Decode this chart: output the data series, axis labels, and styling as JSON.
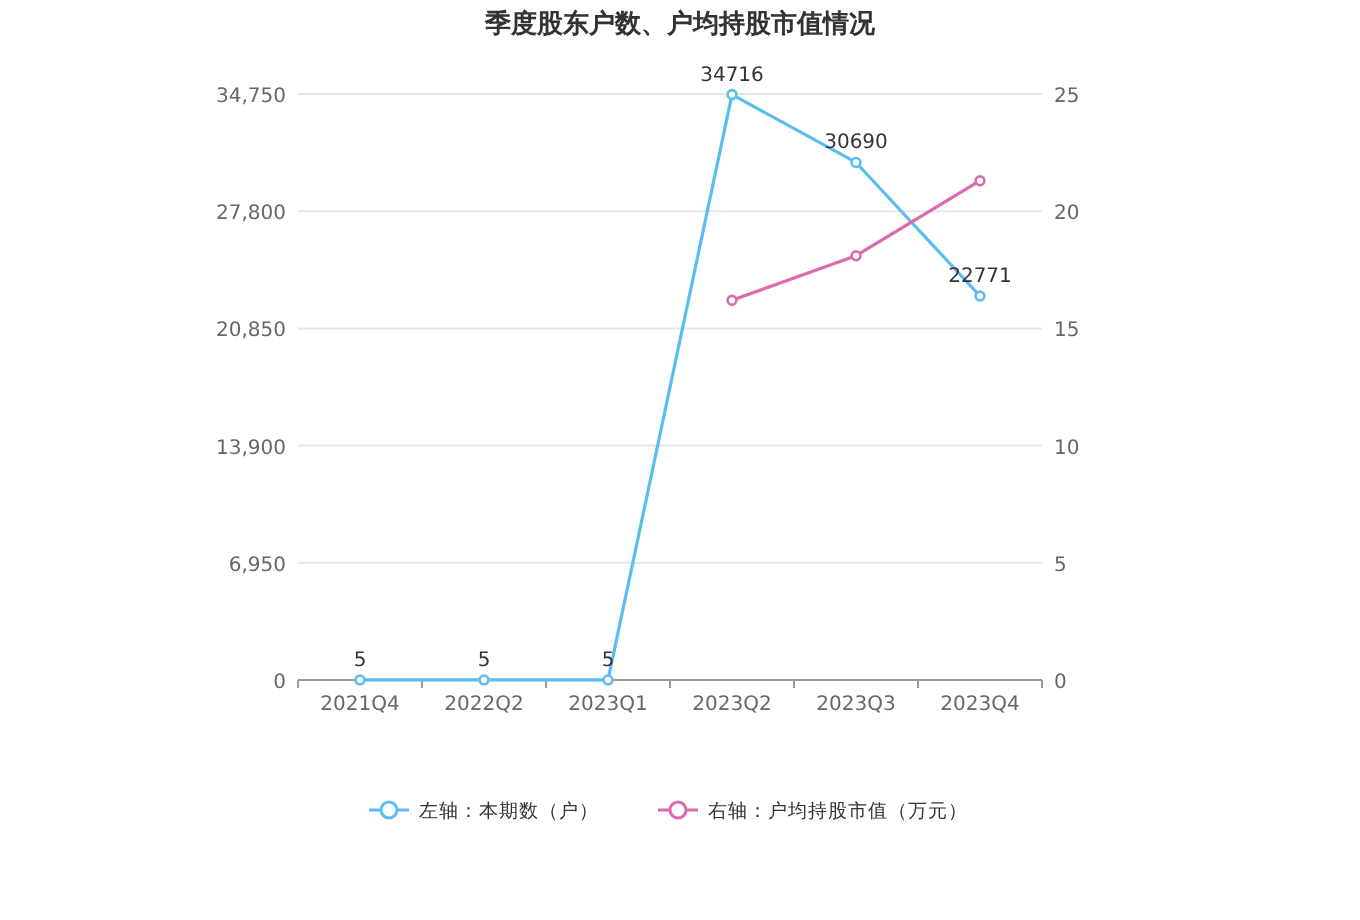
{
  "chart_data": {
    "type": "line",
    "title": "季度股东户数、户均持股市值情况",
    "categories": [
      "2021Q4",
      "2022Q2",
      "2023Q1",
      "2023Q2",
      "2023Q3",
      "2023Q4"
    ],
    "series": [
      {
        "name": "左轴：本期数（户）",
        "color": "#5bbcf0",
        "values": [
          5,
          5,
          5,
          34716,
          30690,
          22771
        ],
        "value_labels": [
          "5",
          "5",
          "5",
          "34716",
          "30690",
          "22771"
        ]
      },
      {
        "name": "右轴：户均持股市值（万元）",
        "color": "#dd6aae",
        "axis": "y2",
        "values": [
          null,
          null,
          null,
          16.2,
          18.1,
          21.3
        ]
      }
    ],
    "ylim": [
      0,
      34750
    ],
    "yticks": [
      0,
      {
        "value": 6950,
        "label": "6,950"
      },
      {
        "value": 13900,
        "label": "13,900"
      },
      {
        "value": 20850,
        "label": "20,850"
      },
      {
        "value": 27800,
        "label": "27,800"
      },
      {
        "value": 34750,
        "label": "34,750"
      }
    ],
    "y2lim": [
      0,
      25
    ],
    "y2ticks": [
      0,
      5,
      10,
      15,
      20,
      25
    ],
    "grid": "y",
    "legend": "bottom",
    "marker": "circle",
    "line_style": "solid"
  }
}
